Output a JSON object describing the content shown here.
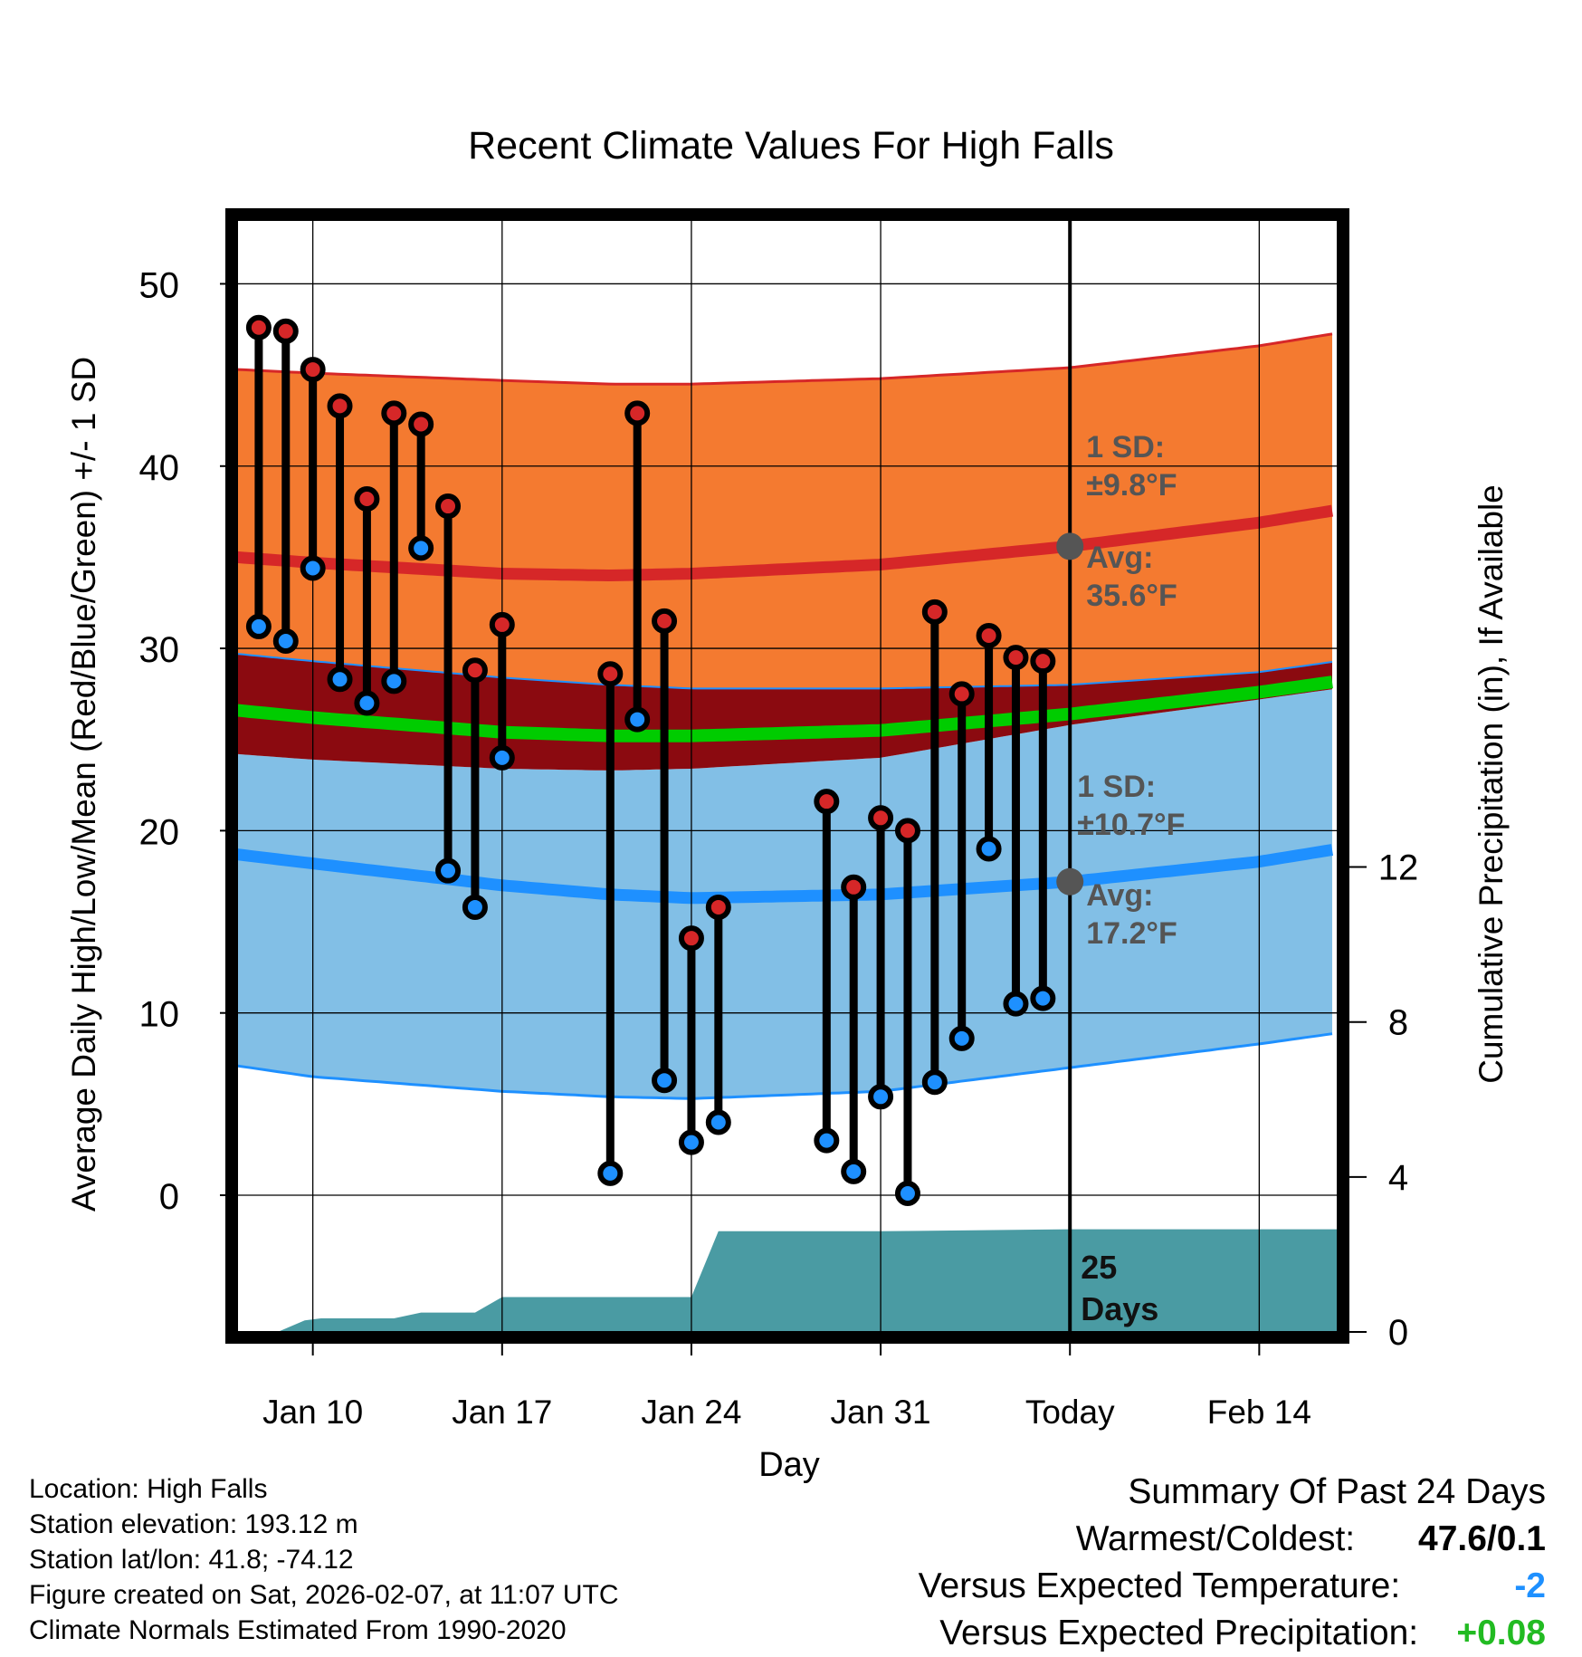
{
  "chart_data": {
    "type": "line",
    "title": "Recent Climate Values For High Falls",
    "xlabel": "Day",
    "ylabel": "Average Daily High/Low/Mean (Red/Blue/Green) +/- 1 SD",
    "y2label": "Cumulative Precipitation (in), If Available",
    "xlim": [
      7.2,
      47.9
    ],
    "ylim": [
      -7.5,
      53.5
    ],
    "y2lim": [
      0,
      28.7
    ],
    "yticks": [
      0,
      10,
      20,
      30,
      40,
      50
    ],
    "y2ticks": [
      0,
      4,
      8,
      12
    ],
    "xticks": [
      {
        "day": 10,
        "label": "Jan 10"
      },
      {
        "day": 17,
        "label": "Jan 17"
      },
      {
        "day": 24,
        "label": "Jan 24"
      },
      {
        "day": 31,
        "label": "Jan 31"
      },
      {
        "day": 38,
        "label": "Today"
      },
      {
        "day": 45,
        "label": "Feb 14"
      }
    ],
    "today_day": 38,
    "normals_days": [
      7.2,
      10,
      17,
      21,
      24,
      31,
      38,
      45,
      47.9
    ],
    "normal_high": [
      35.0,
      34.7,
      34.1,
      34.0,
      34.1,
      34.6,
      35.6,
      36.9,
      37.6
    ],
    "high_sd_upper": [
      45.3,
      45.1,
      44.7,
      44.5,
      44.5,
      44.8,
      45.4,
      46.6,
      47.3
    ],
    "high_sd_lower": [
      29.7,
      29.3,
      28.4,
      28.0,
      27.8,
      27.8,
      28.0,
      28.7,
      29.3
    ],
    "normal_mean": [
      26.6,
      26.2,
      25.4,
      25.2,
      25.2,
      25.5,
      26.4,
      27.6,
      28.2
    ],
    "normal_low": [
      18.7,
      18.2,
      17.0,
      16.5,
      16.3,
      16.5,
      17.2,
      18.3,
      19.0
    ],
    "low_sd_upper": [
      24.2,
      23.9,
      23.4,
      23.3,
      23.4,
      24.0,
      25.8,
      27.2,
      27.8
    ],
    "low_sd_lower": [
      7.1,
      6.5,
      5.7,
      5.4,
      5.3,
      5.7,
      7.0,
      8.3,
      8.9
    ],
    "observations": {
      "days": [
        8,
        9,
        10,
        11,
        12,
        13,
        14,
        15,
        16,
        17,
        21,
        22,
        23,
        24,
        25,
        29,
        30,
        31,
        32,
        33,
        34,
        35,
        36,
        37
      ],
      "high": [
        47.6,
        47.4,
        45.3,
        43.3,
        38.2,
        42.9,
        42.3,
        37.8,
        28.8,
        31.3,
        28.6,
        42.9,
        31.5,
        14.1,
        15.8,
        21.6,
        16.9,
        20.7,
        20.0,
        32.0,
        27.5,
        30.7,
        29.5,
        29.3
      ],
      "low": [
        31.2,
        30.4,
        34.4,
        28.3,
        27.0,
        28.2,
        35.5,
        17.8,
        15.8,
        24.0,
        1.2,
        26.1,
        6.3,
        2.9,
        4.0,
        3.0,
        1.3,
        5.4,
        0.1,
        6.2,
        8.6,
        19.0,
        10.5,
        10.8
      ]
    },
    "precipitation": {
      "days": [
        7.2,
        8.7,
        9.7,
        10.3,
        13.0,
        14.0,
        16.0,
        17.0,
        24.0,
        25.0,
        31.0,
        38.0,
        47.9
      ],
      "values": [
        0,
        0,
        0.3,
        0.35,
        0.35,
        0.5,
        0.5,
        0.9,
        0.9,
        2.6,
        2.6,
        2.65,
        2.65
      ]
    },
    "colors": {
      "high": "#d62728",
      "high_band": "#f47a30",
      "high_band_edge": "#d62728",
      "mean": "#00cc00",
      "overlap": "#8b0a10",
      "low": "#1e90ff",
      "low_band": "#82bfe6",
      "precip": "#4a9ba3",
      "today_marker": "#555555"
    },
    "annotations": {
      "high_sd_label": "1 SD:",
      "high_sd_value": "±9.8°F",
      "high_avg_label": "Avg:",
      "high_avg_value": "35.6°F",
      "low_sd_label": "1 SD:",
      "low_sd_value": "±10.7°F",
      "low_avg_label": "Avg:",
      "low_avg_value": "17.2°F",
      "days_count": "25",
      "days_label": "Days"
    }
  },
  "info": {
    "location": "Location: High Falls",
    "elevation": "Station elevation: 193.12 m",
    "latlon": "Station lat/lon: 41.8; -74.12",
    "created": "Figure created on Sat, 2026-02-07, at 11:07 UTC",
    "normals": "Climate Normals Estimated From 1990-2020"
  },
  "summary": {
    "title": "Summary Of Past 24 Days",
    "warm_cold_label": "Warmest/Coldest:",
    "warm_cold_value": "47.6/0.1",
    "temp_label": "Versus Expected Temperature:",
    "temp_value": "-2",
    "temp_color": "#1e90ff",
    "precip_label": "Versus Expected Precipitation:",
    "precip_value": "+0.08",
    "precip_color": "#22bb22"
  }
}
